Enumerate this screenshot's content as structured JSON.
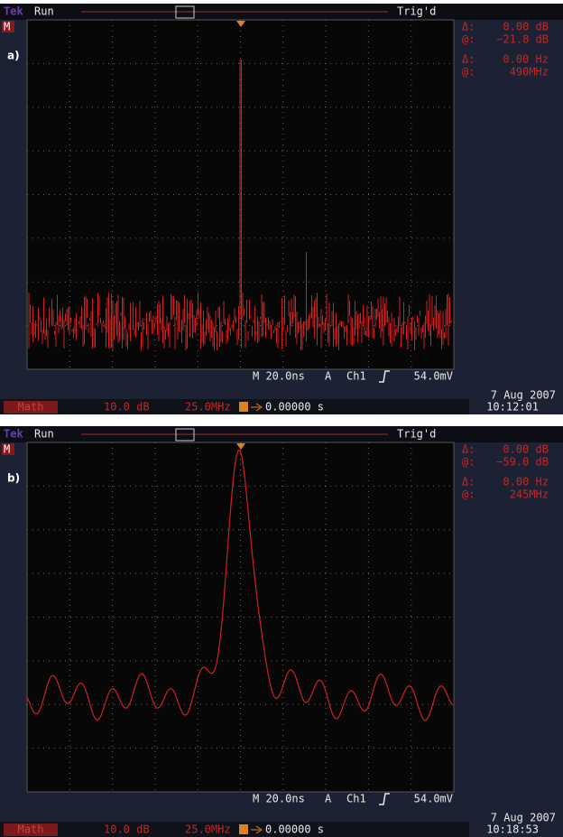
{
  "panels": [
    {
      "label": "a)",
      "marker": "M",
      "brand": "Tek",
      "state": "Run",
      "trigger_state": "Trig'd",
      "readouts": [
        {
          "symbol": "Δ:",
          "value": "0.00 dB"
        },
        {
          "symbol": "@:",
          "value": "−21.8 dB"
        },
        {
          "symbol": "Δ:",
          "value": "0.00 Hz"
        },
        {
          "symbol": "@:",
          "value": "490MHz"
        }
      ],
      "horizontal": "M 20.0ns",
      "trigger_mode": "A",
      "trigger_source": "Ch1",
      "trigger_level": "54.0mV",
      "math_label": "Math",
      "math_scale": "10.0 dB",
      "math_span": "25.0MHz",
      "position": "0.00000 s",
      "date": "7 Aug 2007",
      "time": "10:12:01"
    },
    {
      "label": "b)",
      "marker": "M",
      "brand": "Tek",
      "state": "Run",
      "trigger_state": "Trig'd",
      "readouts": [
        {
          "symbol": "Δ:",
          "value": "0.00 dB"
        },
        {
          "symbol": "@:",
          "value": "−59.0 dB"
        },
        {
          "symbol": "Δ:",
          "value": "0.00 Hz"
        },
        {
          "symbol": "@:",
          "value": "245MHz"
        }
      ],
      "horizontal": "M 20.0ns",
      "trigger_mode": "A",
      "trigger_source": "Ch1",
      "trigger_level": "54.0mV",
      "math_label": "Math",
      "math_scale": "10.0 dB",
      "math_span": "25.0MHz",
      "position": "0.00000 s",
      "date": "7 Aug 2007",
      "time": "10:18:53"
    }
  ]
}
